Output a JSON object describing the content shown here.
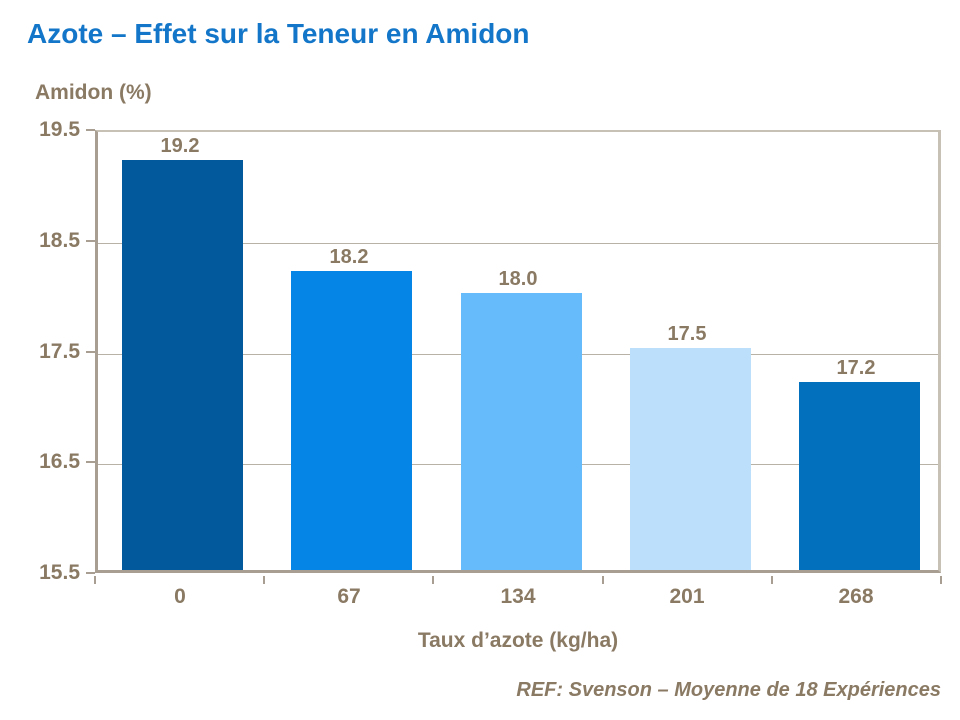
{
  "title": "Azote – Effet sur la Teneur en Amidon",
  "footer": {
    "ref": "REF: Svenson – Moyenne de 18 Expériences"
  },
  "colors": {
    "title_blue": "#1376c8",
    "text_taupe": "#8a7a64",
    "axis_dark": "#a89f92",
    "axis_light": "#c6c0b5",
    "gridline": "#b8b1a6",
    "bar_colors": [
      "#02599c",
      "#0585e5",
      "#66bbfa",
      "#bcdffb",
      "#0270bd"
    ]
  },
  "chart_data": {
    "type": "bar",
    "title": "Azote – Effet sur la Teneur en Amidon",
    "ylabel": "Amidon (%)",
    "xlabel": "Taux d’azote (kg/ha)",
    "categories": [
      "0",
      "67",
      "134",
      "201",
      "268"
    ],
    "values": [
      19.2,
      18.2,
      18.0,
      17.5,
      17.2
    ],
    "value_labels": [
      "19.2",
      "18.2",
      "18.0",
      "17.5",
      "17.2"
    ],
    "bar_colors": [
      "#02599c",
      "#0585e5",
      "#66bbfa",
      "#bcdffb",
      "#0270bd"
    ],
    "ylim": [
      15.5,
      19.5
    ],
    "yticks": [
      19.5,
      18.5,
      17.5,
      16.5,
      15.5
    ],
    "ytick_labels": [
      "19.5",
      "18.5",
      "17.5",
      "16.5",
      "15.5"
    ],
    "grid": "horizontal-interior",
    "legend": "none"
  }
}
